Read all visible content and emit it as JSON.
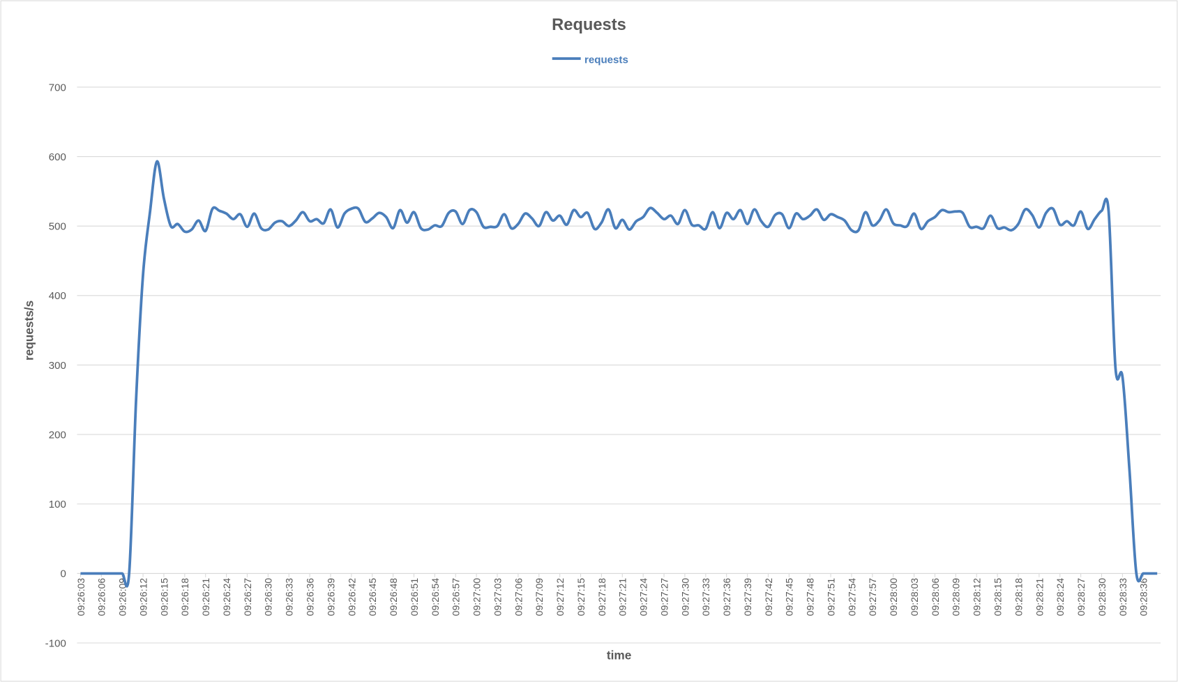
{
  "chart_data": {
    "type": "line",
    "title": "Requests",
    "x_label": "time",
    "y_label": "requests/s",
    "categories": [
      "09:26:03",
      null,
      null,
      "09:26:06",
      null,
      null,
      "09:26:09",
      null,
      null,
      "09:26:12",
      null,
      null,
      "09:26:15",
      null,
      null,
      "09:26:18",
      null,
      null,
      "09:26:21",
      null,
      null,
      "09:26:24",
      null,
      null,
      "09:26:27",
      null,
      null,
      "09:26:30",
      null,
      null,
      "09:26:33",
      null,
      null,
      "09:26:36",
      null,
      null,
      "09:26:39",
      null,
      null,
      "09:26:42",
      null,
      null,
      "09:26:45",
      null,
      null,
      "09:26:48",
      null,
      null,
      "09:26:51",
      null,
      null,
      "09:26:54",
      null,
      null,
      "09:26:57",
      null,
      null,
      "09:27:00",
      null,
      null,
      "09:27:03",
      null,
      null,
      "09:27:06",
      null,
      null,
      "09:27:09",
      null,
      null,
      "09:27:12",
      null,
      null,
      "09:27:15",
      null,
      null,
      "09:27:18",
      null,
      null,
      "09:27:21",
      null,
      null,
      "09:27:24",
      null,
      null,
      "09:27:27",
      null,
      null,
      "09:27:30",
      null,
      null,
      "09:27:33",
      null,
      null,
      "09:27:36",
      null,
      null,
      "09:27:39",
      null,
      null,
      "09:27:42",
      null,
      null,
      "09:27:45",
      null,
      null,
      "09:27:48",
      null,
      null,
      "09:27:51",
      null,
      null,
      "09:27:54",
      null,
      null,
      "09:27:57",
      null,
      null,
      "09:28:00",
      null,
      null,
      "09:28:03",
      null,
      null,
      "09:28:06",
      null,
      null,
      "09:28:09",
      null,
      null,
      "09:28:12",
      null,
      null,
      "09:28:15",
      null,
      null,
      "09:28:18",
      null,
      null,
      "09:28:21",
      null,
      null,
      "09:28:24",
      null,
      null,
      "09:28:27",
      null,
      null,
      "09:28:30",
      null,
      null,
      "09:28:33",
      null,
      null,
      "09:28:36",
      null,
      null
    ],
    "series": [
      {
        "name": "requests",
        "color": "#4a7ebb",
        "values": [
          0,
          0,
          0,
          0,
          0,
          0,
          0,
          0,
          250,
          430,
          520,
          593,
          540,
          500,
          503,
          492,
          495,
          508,
          493,
          525,
          522,
          518,
          510,
          517,
          499,
          518,
          497,
          495,
          505,
          507,
          500,
          508,
          520,
          507,
          510,
          504,
          524,
          498,
          518,
          525,
          525,
          506,
          511,
          519,
          513,
          497,
          523,
          505,
          520,
          497,
          495,
          501,
          500,
          519,
          521,
          503,
          523,
          520,
          499,
          499,
          500,
          517,
          497,
          503,
          518,
          511,
          500,
          520,
          508,
          515,
          502,
          523,
          513,
          519,
          496,
          505,
          524,
          497,
          509,
          495,
          507,
          513,
          526,
          519,
          510,
          515,
          503,
          523,
          502,
          501,
          496,
          520,
          497,
          519,
          510,
          523,
          503,
          524,
          507,
          499,
          516,
          517,
          497,
          518,
          510,
          515,
          524,
          509,
          517,
          513,
          508,
          494,
          494,
          520,
          501,
          508,
          524,
          504,
          501,
          500,
          518,
          496,
          507,
          513,
          523,
          520,
          521,
          519,
          499,
          499,
          497,
          515,
          497,
          498,
          494,
          503,
          524,
          516,
          498,
          519,
          525,
          502,
          507,
          501,
          521,
          496,
          510,
          522,
          522,
          295,
          283,
          150,
          0,
          0,
          0,
          0
        ]
      }
    ],
    "ylim": [
      -100,
      700
    ],
    "yticks": [
      -100,
      0,
      100,
      200,
      300,
      400,
      500,
      600,
      700
    ],
    "grid": true,
    "legend": "top"
  }
}
